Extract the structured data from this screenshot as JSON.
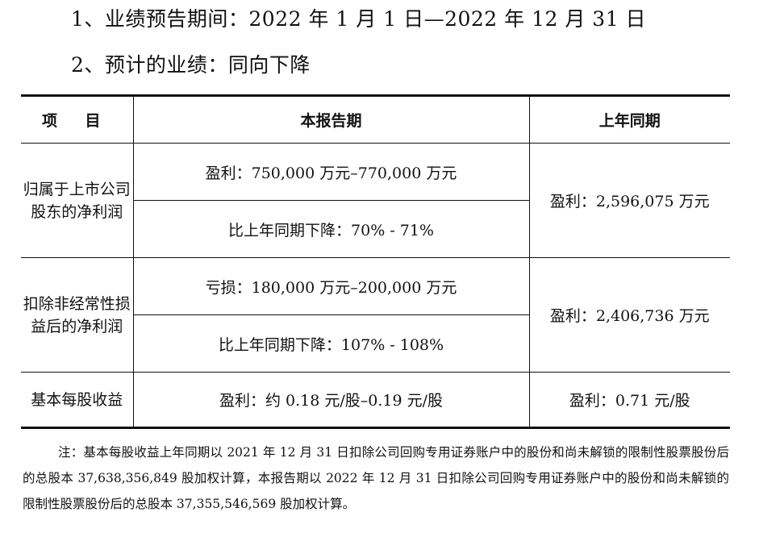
{
  "heading": {
    "item1": "1、业绩预告期间：2022 年 1 月 1 日—2022 年 12 月 31 日",
    "item2": "2、预计的业绩：同向下降"
  },
  "table": {
    "headers": {
      "item": "项 目",
      "current": "本报告期",
      "prior": "上年同期"
    },
    "rows": [
      {
        "label": "归属于上市公司股东的净利润",
        "current_value": "盈利：750,000 万元–770,000 万元",
        "current_change": "比上年同期下降：70% - 71%",
        "prior_value": "盈利：2,596,075 万元"
      },
      {
        "label": "扣除非经常性损益后的净利润",
        "current_value": "亏损：180,000 万元–200,000 万元",
        "current_change": "比上年同期下降：107% - 108%",
        "prior_value": "盈利：2,406,736 万元"
      },
      {
        "label": "基本每股收益",
        "current_value": "盈利：约 0.18 元/股–0.19 元/股",
        "prior_value": "盈利：0.71 元/股"
      }
    ]
  },
  "note": "注：基本每股收益上年同期以 2021 年 12 月 31 日扣除公司回购专用证券账户中的股份和尚未解锁的限制性股票股份后的总股本 37,638,356,849 股加权计算，本报告期以 2022 年 12 月 31 日扣除公司回购专用证券账户中的股份和尚未解锁的限制性股票股份后的总股本 37,355,546,569 股加权计算。"
}
